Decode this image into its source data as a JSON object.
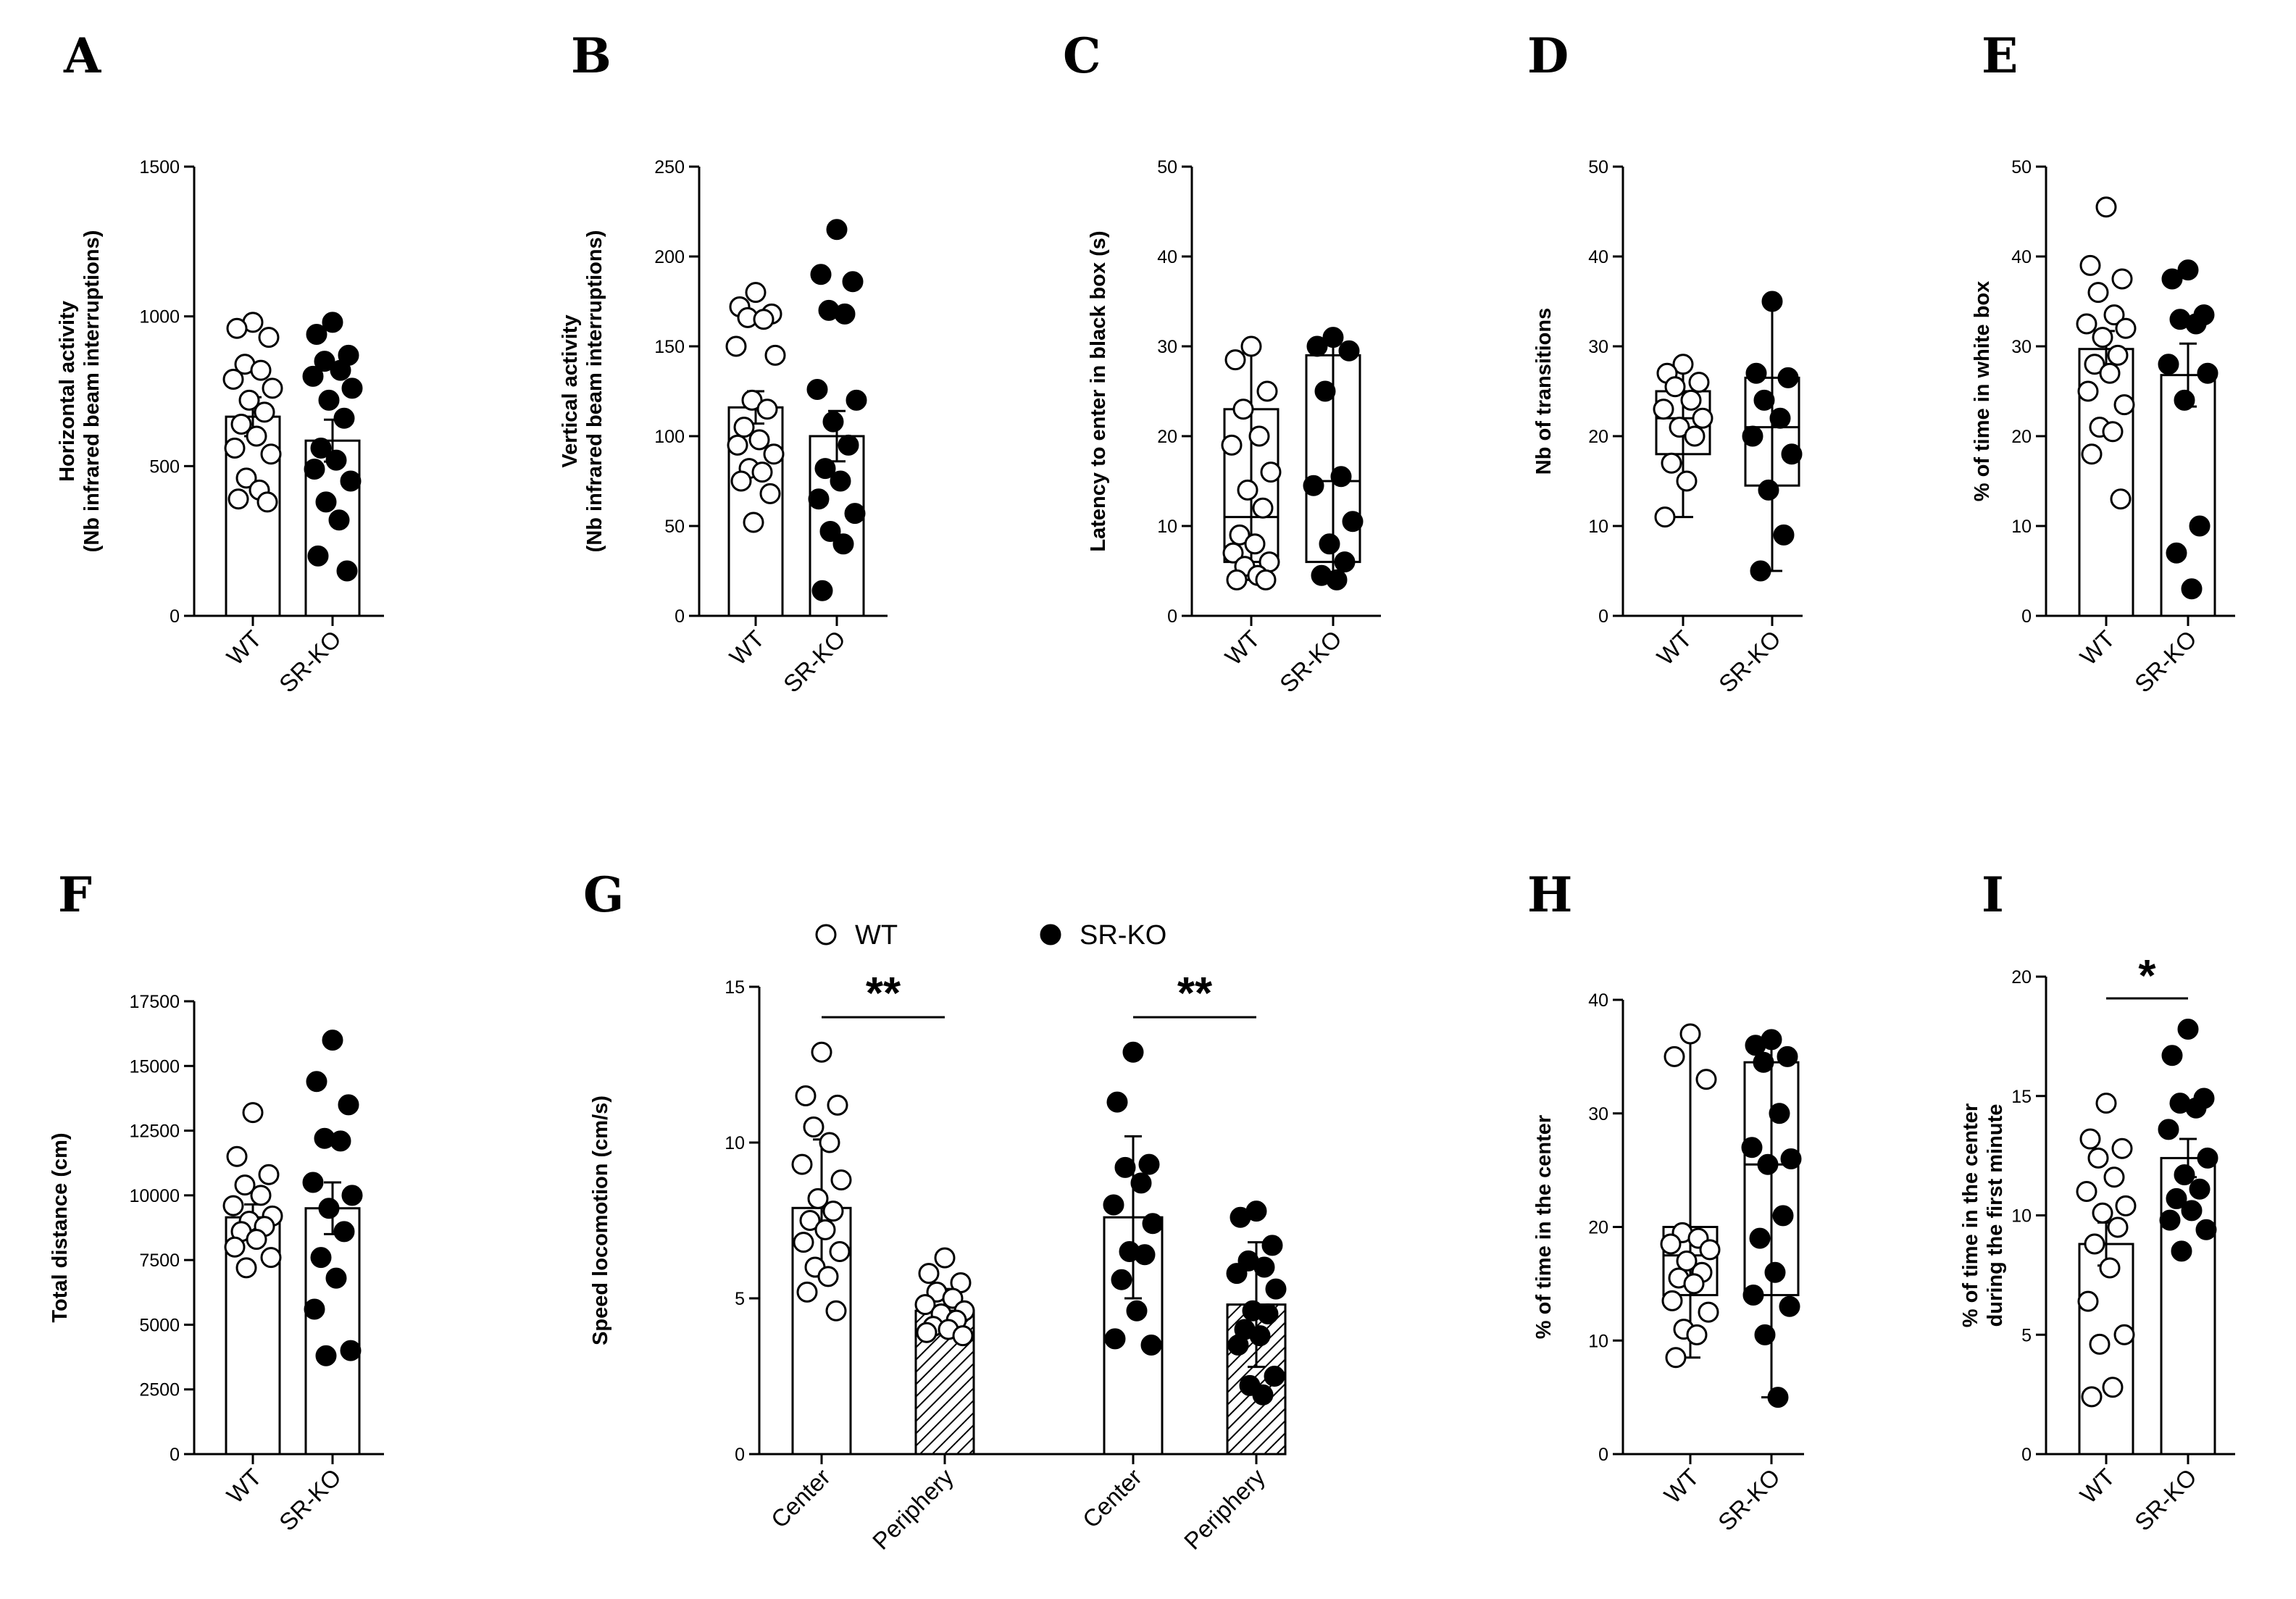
{
  "figure": {
    "title": ""
  },
  "legend": {
    "entries": [
      {
        "name": "WT",
        "marker": "open-circle"
      },
      {
        "name": "SR-KO",
        "marker": "filled-circle"
      }
    ]
  },
  "colors": {
    "wt_fill": "#ffffff",
    "ko_fill": "#000000",
    "stroke": "#000000"
  },
  "chart_data": [
    {
      "label": "A",
      "type": "bar",
      "ylabel": [
        "Horizontal activity",
        "(Nb infrared beam interruptions)"
      ],
      "ylim": [
        0,
        1500
      ],
      "yticks": [
        0,
        500,
        1000,
        1500
      ],
      "categories": [
        "WT",
        "SR-KO"
      ],
      "values": [
        665,
        585
      ],
      "errors": [
        65,
        70
      ],
      "points": [
        [
          980,
          960,
          930,
          840,
          820,
          790,
          760,
          720,
          680,
          640,
          600,
          560,
          540,
          460,
          420,
          390,
          380
        ],
        [
          980,
          940,
          870,
          850,
          820,
          800,
          760,
          720,
          660,
          560,
          520,
          490,
          450,
          380,
          320,
          200,
          150
        ]
      ]
    },
    {
      "label": "B",
      "type": "bar",
      "ylabel": [
        "Vertical activity",
        "(Nb infrared beam interruptions)"
      ],
      "ylim": [
        0,
        250
      ],
      "yticks": [
        0,
        50,
        100,
        150,
        200,
        250
      ],
      "categories": [
        "WT",
        "SR-KO"
      ],
      "values": [
        116,
        100
      ],
      "errors": [
        9,
        14
      ],
      "points": [
        [
          180,
          172,
          168,
          166,
          165,
          150,
          145,
          120,
          115,
          105,
          98,
          95,
          90,
          82,
          80,
          75,
          68,
          52
        ],
        [
          215,
          190,
          186,
          170,
          168,
          126,
          120,
          108,
          95,
          82,
          75,
          65,
          57,
          47,
          40,
          14
        ]
      ]
    },
    {
      "label": "C",
      "type": "box",
      "ylabel": [
        "Latency to enter in black box (s)"
      ],
      "ylim": [
        0,
        50
      ],
      "yticks": [
        0,
        10,
        20,
        30,
        40,
        50
      ],
      "categories": [
        "WT",
        "SR-KO"
      ],
      "box": [
        {
          "min": 4,
          "q1": 6,
          "median": 11,
          "q3": 23,
          "max": 30
        },
        {
          "min": 4,
          "q1": 6,
          "median": 15,
          "q3": 29,
          "max": 31
        }
      ],
      "points": [
        [
          30,
          28.5,
          25,
          23,
          20,
          19,
          16,
          14,
          12,
          9,
          8,
          7,
          6,
          5.5,
          4.5,
          4,
          4
        ],
        [
          31,
          30,
          29.5,
          25,
          15.5,
          14.5,
          10.5,
          8,
          6,
          4.5,
          4
        ]
      ]
    },
    {
      "label": "D",
      "type": "box",
      "ylabel": [
        "Nb of transitions"
      ],
      "ylim": [
        0,
        50
      ],
      "yticks": [
        0,
        10,
        20,
        30,
        40,
        50
      ],
      "categories": [
        "WT",
        "SR-KO"
      ],
      "box": [
        {
          "min": 11,
          "q1": 18,
          "median": 22,
          "q3": 25,
          "max": 28
        },
        {
          "min": 5,
          "q1": 14.5,
          "median": 21,
          "q3": 26.5,
          "max": 35
        }
      ],
      "points": [
        [
          28,
          27,
          26,
          25.5,
          24,
          23,
          22,
          21,
          20,
          17,
          15,
          11
        ],
        [
          35,
          27,
          26.5,
          24,
          22,
          20,
          18,
          14,
          9,
          5
        ]
      ]
    },
    {
      "label": "E",
      "type": "bar",
      "ylabel": [
        "% of time in white box"
      ],
      "ylim": [
        0,
        50
      ],
      "yticks": [
        0,
        10,
        20,
        30,
        40,
        50
      ],
      "categories": [
        "WT",
        "SR-KO"
      ],
      "values": [
        29.7,
        26.8
      ],
      "errors": [
        2,
        3.5
      ],
      "points": [
        [
          45.5,
          39,
          37.5,
          36,
          33.5,
          32.5,
          32,
          31,
          29,
          28,
          27,
          25,
          23.5,
          21,
          20.5,
          18,
          13
        ],
        [
          38.5,
          37.5,
          33.5,
          33,
          32.5,
          28,
          27,
          24,
          10,
          7,
          3
        ]
      ]
    },
    {
      "label": "F",
      "type": "bar",
      "ylabel": [
        "Total distance (cm)"
      ],
      "ylim": [
        0,
        17500
      ],
      "yticks": [
        0,
        2500,
        5000,
        7500,
        10000,
        12500,
        15000,
        17500
      ],
      "categories": [
        "WT",
        "SR-KO"
      ],
      "values": [
        9150,
        9500
      ],
      "errors": [
        500,
        1000
      ],
      "points": [
        [
          13200,
          11500,
          10800,
          10400,
          10000,
          9600,
          9200,
          9000,
          8800,
          8600,
          8300,
          8000,
          7600,
          7200
        ],
        [
          16000,
          14400,
          13500,
          12200,
          12100,
          10500,
          10000,
          9500,
          8600,
          7600,
          6800,
          5600,
          4000,
          3800
        ]
      ]
    },
    {
      "label": "G",
      "type": "bar",
      "ylabel": [
        "Speed locomotion (cm/s)"
      ],
      "ylim": [
        0,
        15
      ],
      "yticks": [
        0,
        5,
        10,
        15
      ],
      "categories": [
        "Center",
        "Periphery",
        "Center",
        "Periphery"
      ],
      "groups": [
        "WT",
        "WT",
        "SR-KO",
        "SR-KO"
      ],
      "values": [
        7.9,
        4.6,
        7.6,
        4.8
      ],
      "errors": [
        2.2,
        0.7,
        2.6,
        2.0
      ],
      "significance": [
        "**",
        "**"
      ],
      "points": [
        [
          12.9,
          11.5,
          11.2,
          10.5,
          10.0,
          9.3,
          8.8,
          8.2,
          7.8,
          7.5,
          7.2,
          6.8,
          6.5,
          6.0,
          5.7,
          5.2,
          4.6
        ],
        [
          6.3,
          5.8,
          5.5,
          5.2,
          5.0,
          4.8,
          4.6,
          4.5,
          4.3,
          4.1,
          4.0,
          3.9,
          3.8
        ],
        [
          12.9,
          11.3,
          9.3,
          9.2,
          8.7,
          8.0,
          7.4,
          6.5,
          6.4,
          5.6,
          4.6,
          3.7,
          3.5
        ],
        [
          7.8,
          7.6,
          6.7,
          6.2,
          6.0,
          5.8,
          5.3,
          4.6,
          4.5,
          4.0,
          3.8,
          3.5,
          2.5,
          2.2,
          1.9
        ]
      ]
    },
    {
      "label": "H",
      "type": "box",
      "ylabel": [
        "% of time in the center"
      ],
      "ylim": [
        0,
        40
      ],
      "yticks": [
        0,
        10,
        20,
        30,
        40
      ],
      "categories": [
        "WT",
        "SR-KO"
      ],
      "box": [
        {
          "min": 8.5,
          "q1": 14,
          "median": 17.5,
          "q3": 20,
          "max": 37
        },
        {
          "min": 5,
          "q1": 14,
          "median": 25.5,
          "q3": 34.5,
          "max": 36.5
        }
      ],
      "points": [
        [
          37,
          35,
          33,
          19.5,
          19,
          18.5,
          18,
          17,
          16,
          15.5,
          15,
          13.5,
          12.5,
          11,
          10.5,
          8.5
        ],
        [
          36.5,
          36,
          35,
          34.5,
          30,
          27,
          26,
          25.5,
          21,
          19,
          16,
          14,
          13,
          10.5,
          5
        ]
      ]
    },
    {
      "label": "I",
      "type": "bar",
      "ylabel": [
        "% of time in the center",
        "during the first minute"
      ],
      "ylim": [
        0,
        20
      ],
      "yticks": [
        0,
        5,
        10,
        15,
        20
      ],
      "categories": [
        "WT",
        "SR-KO"
      ],
      "values": [
        8.8,
        12.4
      ],
      "errors": [
        0.9,
        0.8
      ],
      "significance": [
        "*"
      ],
      "points": [
        [
          14.7,
          13.2,
          12.8,
          12.4,
          11.6,
          11.0,
          10.4,
          10.1,
          9.5,
          8.8,
          7.8,
          6.4,
          5.0,
          4.6,
          2.8,
          2.4
        ],
        [
          17.8,
          16.7,
          14.9,
          14.7,
          14.5,
          13.6,
          12.4,
          11.7,
          11.1,
          10.7,
          10.2,
          9.8,
          9.4,
          8.5
        ]
      ]
    }
  ]
}
